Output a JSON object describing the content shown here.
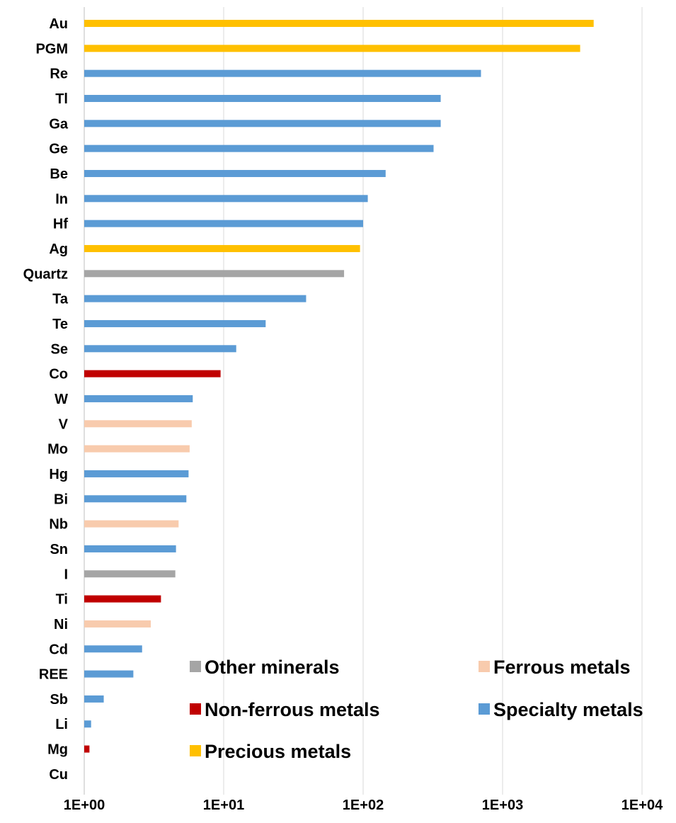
{
  "chart_data": {
    "type": "bar",
    "orientation": "horizontal",
    "title": "",
    "xlabel": "",
    "ylabel": "",
    "x_scale": "log10",
    "xlim": [
      1,
      10000
    ],
    "grid": "vertical",
    "legend_placement": "bottom-right",
    "x_ticks": [
      "1E+00",
      "1E+01",
      "1E+02",
      "1E+03",
      "1E+04"
    ],
    "categories": [
      "Au",
      "PGM",
      "Re",
      "Tl",
      "Ga",
      "Ge",
      "Be",
      "In",
      "Hf",
      "Ag",
      "Quartz",
      "Ta",
      "Te",
      "Se",
      "Co",
      "W",
      "V",
      "Mo",
      "Hg",
      "Bi",
      "Nb",
      "Sn",
      "I",
      "Ti",
      "Ni",
      "Cd",
      "REE",
      "Sb",
      "Li",
      "Mg",
      "Cu"
    ],
    "values": [
      4500,
      3600,
      700,
      360,
      360,
      320,
      145,
      108,
      100,
      95,
      73,
      39,
      20,
      12.3,
      9.5,
      6,
      5.9,
      5.7,
      5.6,
      5.4,
      4.75,
      4.55,
      4.5,
      3.55,
      3.0,
      2.6,
      2.25,
      1.38,
      1.12,
      1.09,
      1.0
    ],
    "groups": [
      "Precious metals",
      "Precious metals",
      "Specialty metals",
      "Specialty metals",
      "Specialty metals",
      "Specialty metals",
      "Specialty metals",
      "Specialty metals",
      "Specialty metals",
      "Precious metals",
      "Other minerals",
      "Specialty metals",
      "Specialty metals",
      "Specialty metals",
      "Non-ferrous metals",
      "Specialty metals",
      "Ferrous metals",
      "Ferrous metals",
      "Specialty metals",
      "Specialty metals",
      "Ferrous metals",
      "Specialty metals",
      "Other minerals",
      "Non-ferrous metals",
      "Ferrous metals",
      "Specialty metals",
      "Specialty metals",
      "Specialty metals",
      "Specialty metals",
      "Non-ferrous metals",
      "Non-ferrous metals"
    ],
    "legend": [
      {
        "name": "Other minerals",
        "color": "#a5a5a5"
      },
      {
        "name": "Ferrous metals",
        "color": "#f8cbad"
      },
      {
        "name": "Non-ferrous metals",
        "color": "#c00000"
      },
      {
        "name": "Specialty metals",
        "color": "#5b9bd5"
      },
      {
        "name": "Precious metals",
        "color": "#ffc000"
      }
    ],
    "gridline_color": "#d9d9d9"
  }
}
